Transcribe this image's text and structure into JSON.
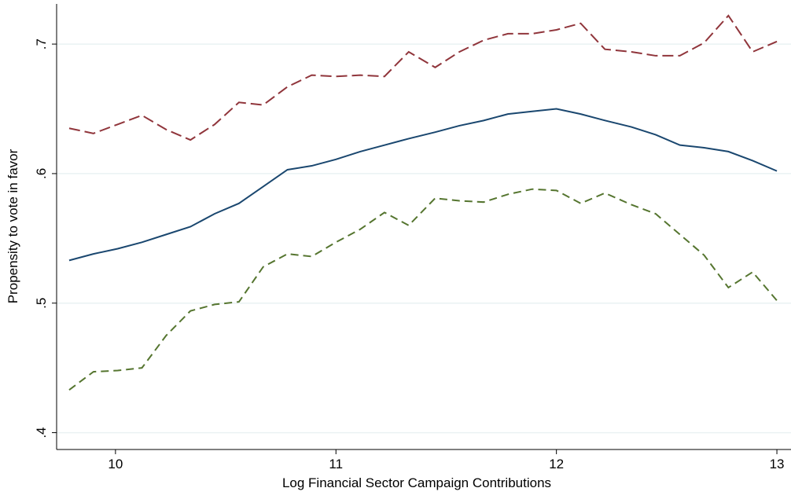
{
  "chart_data": {
    "type": "line",
    "x_label": "Log Financial Sector Campaign Contributions",
    "y_label": "Propensity to vote in favor",
    "x": [
      9.79,
      9.9,
      10.01,
      10.12,
      10.23,
      10.34,
      10.45,
      10.56,
      10.67,
      10.78,
      10.89,
      11.0,
      11.11,
      11.22,
      11.33,
      11.45,
      11.56,
      11.67,
      11.78,
      11.89,
      12.0,
      12.11,
      12.22,
      12.34,
      12.45,
      12.56,
      12.67,
      12.78,
      12.89,
      13.0
    ],
    "series": [
      {
        "color": "#90353b",
        "line_style": "longdash",
        "values": [
          0.635,
          0.631,
          0.638,
          0.645,
          0.634,
          0.626,
          0.638,
          0.655,
          0.653,
          0.667,
          0.676,
          0.675,
          0.676,
          0.675,
          0.694,
          0.682,
          0.694,
          0.703,
          0.708,
          0.708,
          0.711,
          0.716,
          0.696,
          0.694,
          0.691,
          0.691,
          0.701,
          0.722,
          0.694,
          0.702
        ]
      },
      {
        "color": "#1a476f",
        "line_style": "solid",
        "values": [
          0.533,
          0.538,
          0.542,
          0.547,
          0.553,
          0.559,
          0.569,
          0.577,
          0.59,
          0.603,
          0.606,
          0.611,
          0.617,
          0.622,
          0.627,
          0.632,
          0.637,
          0.641,
          0.646,
          0.648,
          0.65,
          0.646,
          0.641,
          0.636,
          0.63,
          0.622,
          0.62,
          0.617,
          0.61,
          0.602
        ]
      },
      {
        "color": "#55752f",
        "line_style": "dash",
        "values": [
          0.433,
          0.447,
          0.448,
          0.45,
          0.475,
          0.494,
          0.499,
          0.501,
          0.528,
          0.538,
          0.536,
          0.547,
          0.557,
          0.57,
          0.56,
          0.581,
          0.579,
          0.578,
          0.584,
          0.588,
          0.587,
          0.577,
          0.585,
          0.576,
          0.569,
          0.553,
          0.537,
          0.512,
          0.524,
          0.502
        ]
      }
    ],
    "xlim": [
      9.733,
      13.064
    ],
    "ylim": [
      0.387,
      0.731
    ],
    "xticks": [
      10,
      11,
      12,
      13
    ],
    "yticks": [
      {
        "value": 0.4,
        "label": ".4"
      },
      {
        "value": 0.5,
        "label": ".5"
      },
      {
        "value": 0.6,
        "label": ".6"
      },
      {
        "value": 0.7,
        "label": ".7"
      }
    ],
    "grid": true
  }
}
